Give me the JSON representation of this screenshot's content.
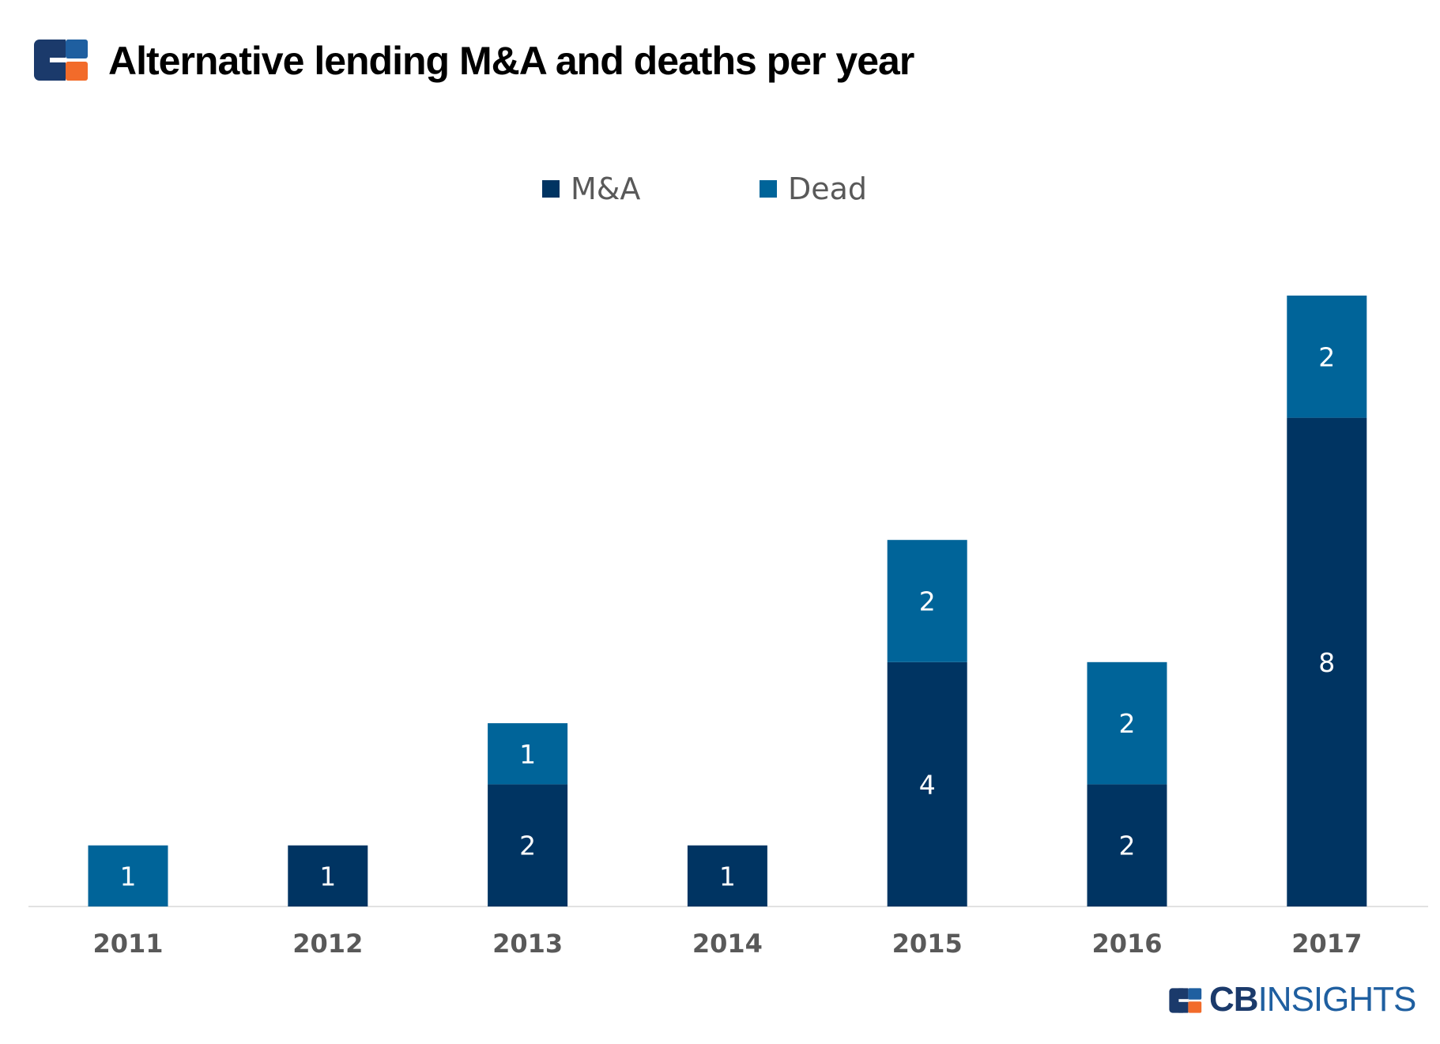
{
  "header": {
    "title": "Alternative lending M&A and deaths per year",
    "logo_icon": "cb-insights-logo-icon"
  },
  "footer": {
    "brand_bold": "CB",
    "brand_light": "INSIGHTS",
    "logo_icon": "cb-insights-logo-icon"
  },
  "colors": {
    "ma": "#003462",
    "dead": "#006499",
    "logo_navy": "#1b3a6b",
    "logo_blue": "#1f5fa0",
    "logo_orange": "#f26b2a",
    "axis_label": "#595959"
  },
  "chart_data": {
    "type": "bar",
    "stacked": true,
    "title": "Alternative lending M&A and deaths per year",
    "categories": [
      "2011",
      "2012",
      "2013",
      "2014",
      "2015",
      "2016",
      "2017"
    ],
    "series": [
      {
        "name": "M&A",
        "values": [
          0,
          1,
          2,
          1,
          4,
          2,
          8
        ]
      },
      {
        "name": "Dead",
        "values": [
          1,
          0,
          1,
          0,
          2,
          2,
          2
        ]
      }
    ],
    "data_labels": true,
    "ylim": [
      0,
      10
    ],
    "grid": false,
    "legend": "top-center"
  }
}
